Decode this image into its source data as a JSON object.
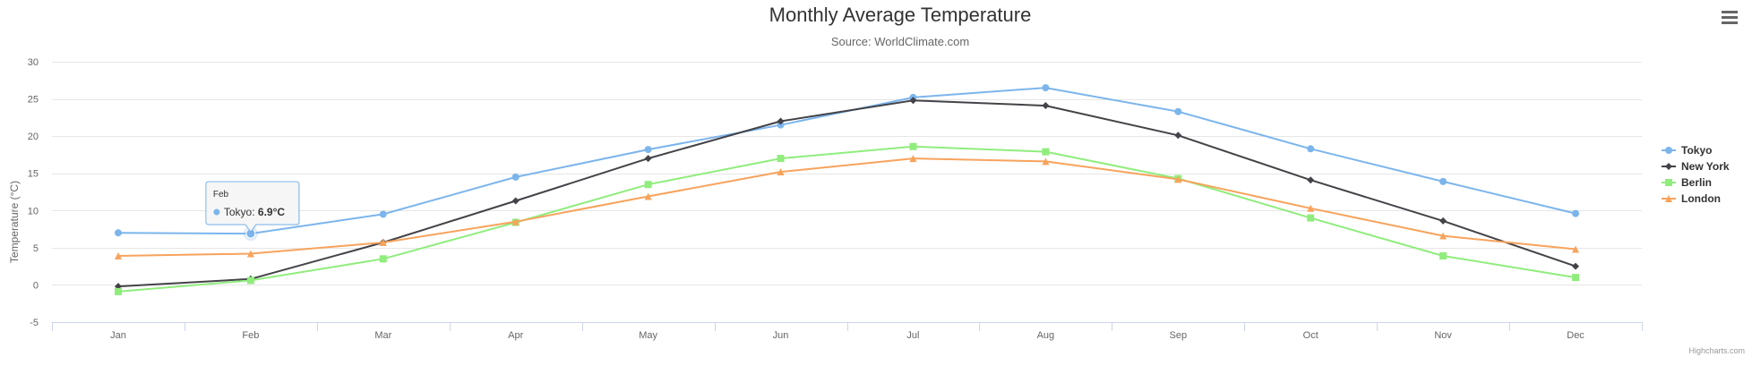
{
  "chart_data": {
    "type": "line",
    "title": "Monthly Average Temperature",
    "subtitle": "Source: WorldClimate.com",
    "ylabel": "Temperature (°C)",
    "xlabel": "",
    "categories": [
      "Jan",
      "Feb",
      "Mar",
      "Apr",
      "May",
      "Jun",
      "Jul",
      "Aug",
      "Sep",
      "Oct",
      "Nov",
      "Dec"
    ],
    "ylim": [
      -5,
      30
    ],
    "yticks": [
      -5,
      0,
      5,
      10,
      15,
      20,
      25,
      30
    ],
    "grid": true,
    "legend_position": "right",
    "series": [
      {
        "name": "Tokyo",
        "color": "#7cb5ec",
        "marker": "circle",
        "values": [
          7.0,
          6.9,
          9.5,
          14.5,
          18.2,
          21.5,
          25.2,
          26.5,
          23.3,
          18.3,
          13.9,
          9.6
        ]
      },
      {
        "name": "New York",
        "color": "#434348",
        "marker": "diamond",
        "values": [
          -0.2,
          0.8,
          5.7,
          11.3,
          17.0,
          22.0,
          24.8,
          24.1,
          20.1,
          14.1,
          8.6,
          2.5
        ]
      },
      {
        "name": "Berlin",
        "color": "#90ed7d",
        "marker": "square",
        "values": [
          -0.9,
          0.6,
          3.5,
          8.4,
          13.5,
          17.0,
          18.6,
          17.9,
          14.3,
          9.0,
          3.9,
          1.0
        ]
      },
      {
        "name": "London",
        "color": "#f7a35c",
        "marker": "triangle",
        "values": [
          3.9,
          4.2,
          5.7,
          8.5,
          11.9,
          15.2,
          17.0,
          16.6,
          14.2,
          10.3,
          6.6,
          4.8
        ]
      }
    ]
  },
  "tooltip": {
    "header": "Feb",
    "series_name": "Tokyo",
    "series_index": 0,
    "category_index": 1,
    "value_text": "6.9°C",
    "color": "#7cb5ec"
  },
  "credits": "Highcharts.com",
  "menu": {
    "icon": "hamburger-menu-icon"
  }
}
